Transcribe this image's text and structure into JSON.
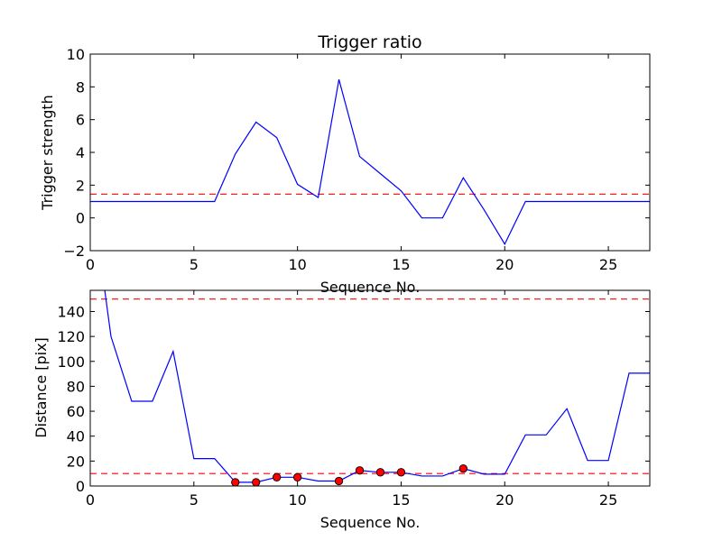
{
  "chart_data": [
    {
      "type": "line",
      "title": "Trigger ratio",
      "xlabel": "Sequence No.",
      "ylabel": "Trigger strength",
      "xlim": [
        0,
        27
      ],
      "ylim": [
        -2,
        10
      ],
      "xticks": [
        0,
        5,
        10,
        15,
        20,
        25
      ],
      "yticks": [
        -2,
        0,
        2,
        4,
        6,
        8,
        10
      ],
      "tick_labels_y": [
        "−2",
        "0",
        "2",
        "4",
        "6",
        "8",
        "10"
      ],
      "series": [
        {
          "color": "#0000ff",
          "x": [
            0,
            1,
            2,
            3,
            4,
            5,
            6,
            7,
            8,
            9,
            10,
            11,
            12,
            13,
            14,
            15,
            16,
            17,
            18,
            19,
            20,
            21,
            22,
            23,
            24,
            25,
            26,
            27
          ],
          "y": [
            1,
            1,
            1,
            1,
            1,
            1,
            1,
            3.9,
            5.85,
            4.9,
            2.05,
            1.25,
            8.45,
            3.75,
            2.7,
            1.65,
            0,
            0,
            2.45,
            0.5,
            -1.6,
            1,
            1,
            1,
            1,
            1,
            1,
            1
          ]
        }
      ],
      "hlines": [
        {
          "y": 1.45,
          "color": "#ff0000",
          "style": "dashed"
        }
      ],
      "grid": false
    },
    {
      "type": "line",
      "title": "",
      "xlabel": "Sequence No.",
      "ylabel": "Distance [pix]",
      "xlim": [
        0,
        27
      ],
      "ylim": [
        0,
        157
      ],
      "xticks": [
        0,
        5,
        10,
        15,
        20,
        25
      ],
      "yticks": [
        0,
        20,
        40,
        60,
        80,
        100,
        120,
        140
      ],
      "tick_labels_y": [
        "0",
        "20",
        "40",
        "60",
        "80",
        "100",
        "120",
        "140"
      ],
      "series": [
        {
          "color": "#0000ff",
          "x": [
            0.7,
            1,
            2,
            3,
            4,
            5,
            6,
            7,
            8,
            9,
            10,
            11,
            12,
            13,
            14,
            15,
            16,
            17,
            18,
            19,
            20,
            21,
            22,
            23,
            24,
            25,
            26,
            27
          ],
          "y": [
            157,
            120,
            68,
            68,
            108,
            22,
            22,
            3,
            3,
            7,
            7,
            4,
            4,
            12.5,
            11,
            11,
            8,
            8,
            14,
            9.5,
            9.5,
            41,
            41,
            62,
            20.5,
            20.5,
            90.5,
            90.5
          ]
        }
      ],
      "markers": {
        "color": "#ff0000",
        "x": [
          7,
          8,
          9,
          10,
          12,
          13,
          14,
          15,
          18
        ],
        "y": [
          3,
          3,
          7,
          7,
          4,
          12.5,
          11,
          11,
          14
        ]
      },
      "hlines": [
        {
          "y": 150,
          "color": "#ff0000",
          "style": "dashed"
        },
        {
          "y": 10,
          "color": "#ff0000",
          "style": "dashed"
        }
      ],
      "grid": false
    }
  ]
}
